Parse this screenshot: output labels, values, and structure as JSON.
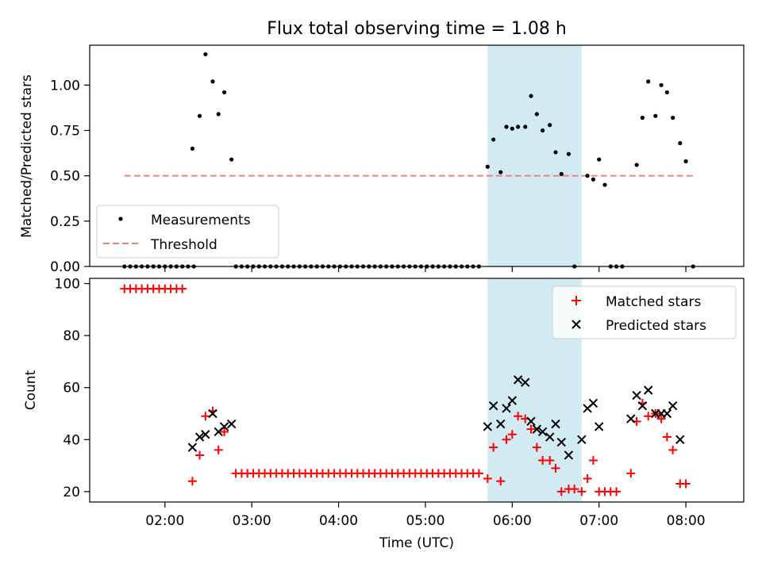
{
  "title": "Flux total observing time = 1.08 h",
  "chart_data": [
    {
      "type": "scatter",
      "ylabel": "Matched/Predicted stars",
      "ylim": [
        0,
        1.22
      ],
      "xlim": [
        "01:08",
        "08:40"
      ],
      "yticks": [
        "0.00",
        "0.25",
        "0.50",
        "0.75",
        "1.00"
      ],
      "grid": false,
      "legend_position": "lower-left",
      "highlight_span": [
        "05:43",
        "06:48"
      ],
      "highlight_color": "#add8e6",
      "series": [
        {
          "name": "Measurements",
          "kind": "points",
          "color": "#000000",
          "points": [
            [
              "01:32",
              0
            ],
            [
              "01:36",
              0
            ],
            [
              "01:40",
              0
            ],
            [
              "01:44",
              0
            ],
            [
              "01:48",
              0
            ],
            [
              "01:52",
              0
            ],
            [
              "01:56",
              0
            ],
            [
              "02:00",
              0
            ],
            [
              "02:04",
              0
            ],
            [
              "02:08",
              0
            ],
            [
              "02:12",
              0
            ],
            [
              "02:16",
              0
            ],
            [
              "02:20",
              0
            ],
            [
              "02:19",
              0.65
            ],
            [
              "02:24",
              0.83
            ],
            [
              "02:28",
              1.17
            ],
            [
              "02:33",
              1.02
            ],
            [
              "02:37",
              0.84
            ],
            [
              "02:41",
              0.96
            ],
            [
              "02:46",
              0.59
            ],
            [
              "02:49",
              0
            ],
            [
              "02:53",
              0
            ],
            [
              "02:57",
              0
            ],
            [
              "03:01",
              0
            ],
            [
              "03:05",
              0
            ],
            [
              "03:09",
              0
            ],
            [
              "03:13",
              0
            ],
            [
              "03:17",
              0
            ],
            [
              "03:21",
              0
            ],
            [
              "03:25",
              0
            ],
            [
              "03:29",
              0
            ],
            [
              "03:33",
              0
            ],
            [
              "03:37",
              0
            ],
            [
              "03:41",
              0
            ],
            [
              "03:45",
              0
            ],
            [
              "03:49",
              0
            ],
            [
              "03:53",
              0
            ],
            [
              "03:57",
              0
            ],
            [
              "04:01",
              0
            ],
            [
              "04:05",
              0
            ],
            [
              "04:09",
              0
            ],
            [
              "04:13",
              0
            ],
            [
              "04:17",
              0
            ],
            [
              "04:21",
              0
            ],
            [
              "04:25",
              0
            ],
            [
              "04:29",
              0
            ],
            [
              "04:33",
              0
            ],
            [
              "04:37",
              0
            ],
            [
              "04:41",
              0
            ],
            [
              "04:45",
              0
            ],
            [
              "04:49",
              0
            ],
            [
              "04:53",
              0
            ],
            [
              "04:57",
              0
            ],
            [
              "05:01",
              0
            ],
            [
              "05:05",
              0
            ],
            [
              "05:09",
              0
            ],
            [
              "05:13",
              0
            ],
            [
              "05:17",
              0
            ],
            [
              "05:21",
              0
            ],
            [
              "05:25",
              0
            ],
            [
              "05:29",
              0
            ],
            [
              "05:33",
              0
            ],
            [
              "05:37",
              0
            ],
            [
              "05:43",
              0.55
            ],
            [
              "05:47",
              0.7
            ],
            [
              "05:52",
              0.52
            ],
            [
              "05:56",
              0.77
            ],
            [
              "06:00",
              0.76
            ],
            [
              "06:04",
              0.77
            ],
            [
              "06:09",
              0.77
            ],
            [
              "06:13",
              0.94
            ],
            [
              "06:17",
              0.84
            ],
            [
              "06:21",
              0.75
            ],
            [
              "06:26",
              0.78
            ],
            [
              "06:30",
              0.63
            ],
            [
              "06:34",
              0.51
            ],
            [
              "06:39",
              0.62
            ],
            [
              "06:43",
              0
            ],
            [
              "06:52",
              0.5
            ],
            [
              "06:56",
              0.48
            ],
            [
              "07:00",
              0.59
            ],
            [
              "07:04",
              0.45
            ],
            [
              "07:08",
              0
            ],
            [
              "07:12",
              0
            ],
            [
              "07:16",
              0
            ],
            [
              "07:26",
              0.56
            ],
            [
              "07:30",
              0.82
            ],
            [
              "07:34",
              1.02
            ],
            [
              "07:39",
              0.83
            ],
            [
              "07:43",
              1.0
            ],
            [
              "07:47",
              0.96
            ],
            [
              "07:51",
              0.82
            ],
            [
              "07:56",
              0.68
            ],
            [
              "08:00",
              0.58
            ],
            [
              "08:05",
              0
            ]
          ]
        },
        {
          "name": "Threshold",
          "kind": "dashed-line",
          "color": "#f08080",
          "x": [
            "01:32",
            "08:05"
          ],
          "y": [
            0.5,
            0.5
          ]
        }
      ]
    },
    {
      "type": "scatter",
      "xlabel": "Time (UTC)",
      "ylabel": "Count",
      "ylim": [
        16,
        102
      ],
      "xlim": [
        "01:08",
        "08:40"
      ],
      "xticks": [
        "02:00",
        "03:00",
        "04:00",
        "05:00",
        "06:00",
        "07:00",
        "08:00"
      ],
      "yticks": [
        "20",
        "40",
        "60",
        "80",
        "100"
      ],
      "grid": false,
      "legend_position": "upper-right",
      "highlight_span": [
        "05:43",
        "06:48"
      ],
      "highlight_color": "#add8e6",
      "series": [
        {
          "name": "Matched stars",
          "marker": "plus",
          "color": "#ff0000",
          "points": [
            [
              "01:32",
              98
            ],
            [
              "01:36",
              98
            ],
            [
              "01:40",
              98
            ],
            [
              "01:44",
              98
            ],
            [
              "01:48",
              98
            ],
            [
              "01:52",
              98
            ],
            [
              "01:56",
              98
            ],
            [
              "02:00",
              98
            ],
            [
              "02:04",
              98
            ],
            [
              "02:08",
              98
            ],
            [
              "02:12",
              98
            ],
            [
              "02:19",
              24
            ],
            [
              "02:24",
              34
            ],
            [
              "02:28",
              49
            ],
            [
              "02:33",
              51
            ],
            [
              "02:37",
              36
            ],
            [
              "02:41",
              43
            ],
            [
              "02:49",
              27
            ],
            [
              "02:53",
              27
            ],
            [
              "02:57",
              27
            ],
            [
              "03:01",
              27
            ],
            [
              "03:05",
              27
            ],
            [
              "03:09",
              27
            ],
            [
              "03:13",
              27
            ],
            [
              "03:17",
              27
            ],
            [
              "03:21",
              27
            ],
            [
              "03:25",
              27
            ],
            [
              "03:29",
              27
            ],
            [
              "03:33",
              27
            ],
            [
              "03:37",
              27
            ],
            [
              "03:41",
              27
            ],
            [
              "03:45",
              27
            ],
            [
              "03:49",
              27
            ],
            [
              "03:53",
              27
            ],
            [
              "03:57",
              27
            ],
            [
              "04:01",
              27
            ],
            [
              "04:05",
              27
            ],
            [
              "04:09",
              27
            ],
            [
              "04:13",
              27
            ],
            [
              "04:17",
              27
            ],
            [
              "04:21",
              27
            ],
            [
              "04:25",
              27
            ],
            [
              "04:29",
              27
            ],
            [
              "04:33",
              27
            ],
            [
              "04:37",
              27
            ],
            [
              "04:41",
              27
            ],
            [
              "04:45",
              27
            ],
            [
              "04:49",
              27
            ],
            [
              "04:53",
              27
            ],
            [
              "04:57",
              27
            ],
            [
              "05:01",
              27
            ],
            [
              "05:05",
              27
            ],
            [
              "05:09",
              27
            ],
            [
              "05:13",
              27
            ],
            [
              "05:17",
              27
            ],
            [
              "05:21",
              27
            ],
            [
              "05:25",
              27
            ],
            [
              "05:29",
              27
            ],
            [
              "05:33",
              27
            ],
            [
              "05:37",
              27
            ],
            [
              "05:43",
              25
            ],
            [
              "05:47",
              37
            ],
            [
              "05:52",
              24
            ],
            [
              "05:56",
              40
            ],
            [
              "06:00",
              42
            ],
            [
              "06:04",
              49
            ],
            [
              "06:09",
              48
            ],
            [
              "06:13",
              44
            ],
            [
              "06:17",
              37
            ],
            [
              "06:21",
              32
            ],
            [
              "06:26",
              32
            ],
            [
              "06:30",
              29
            ],
            [
              "06:34",
              20
            ],
            [
              "06:39",
              21
            ],
            [
              "06:43",
              21
            ],
            [
              "06:48",
              20
            ],
            [
              "06:52",
              25
            ],
            [
              "06:56",
              32
            ],
            [
              "07:00",
              20
            ],
            [
              "07:04",
              20
            ],
            [
              "07:08",
              20
            ],
            [
              "07:12",
              20
            ],
            [
              "07:22",
              27
            ],
            [
              "07:26",
              47
            ],
            [
              "07:30",
              54
            ],
            [
              "07:34",
              49
            ],
            [
              "07:39",
              50
            ],
            [
              "07:43",
              48
            ],
            [
              "07:47",
              41
            ],
            [
              "07:51",
              36
            ],
            [
              "07:56",
              23
            ],
            [
              "08:00",
              23
            ]
          ]
        },
        {
          "name": "Predicted stars",
          "marker": "x",
          "color": "#000000",
          "points": [
            [
              "02:19",
              37
            ],
            [
              "02:24",
              41
            ],
            [
              "02:28",
              42
            ],
            [
              "02:33",
              50
            ],
            [
              "02:37",
              43
            ],
            [
              "02:41",
              45
            ],
            [
              "02:46",
              46
            ],
            [
              "05:43",
              45
            ],
            [
              "05:47",
              53
            ],
            [
              "05:52",
              46
            ],
            [
              "05:56",
              52
            ],
            [
              "06:00",
              55
            ],
            [
              "06:04",
              63
            ],
            [
              "06:09",
              62
            ],
            [
              "06:13",
              47
            ],
            [
              "06:17",
              44
            ],
            [
              "06:21",
              43
            ],
            [
              "06:26",
              41
            ],
            [
              "06:30",
              46
            ],
            [
              "06:34",
              39
            ],
            [
              "06:39",
              34
            ],
            [
              "06:48",
              40
            ],
            [
              "06:52",
              52
            ],
            [
              "06:56",
              54
            ],
            [
              "07:00",
              45
            ],
            [
              "07:22",
              48
            ],
            [
              "07:26",
              57
            ],
            [
              "07:30",
              53
            ],
            [
              "07:34",
              59
            ],
            [
              "07:39",
              50
            ],
            [
              "07:43",
              50
            ],
            [
              "07:47",
              50
            ],
            [
              "07:51",
              53
            ],
            [
              "07:56",
              40
            ]
          ]
        }
      ]
    }
  ]
}
